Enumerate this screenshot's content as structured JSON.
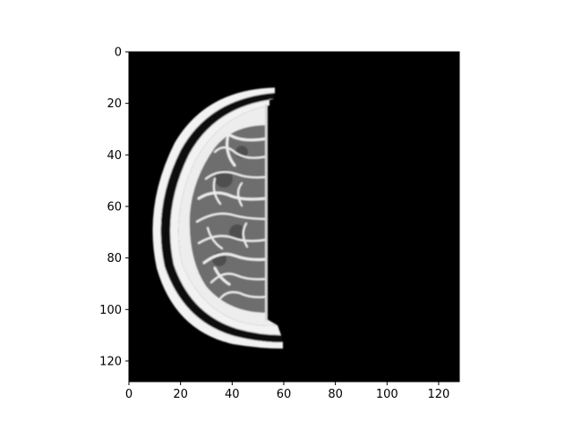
{
  "chart_data": {
    "type": "heatmap",
    "xlim": [
      0,
      128
    ],
    "ylim": [
      128,
      0
    ],
    "x_ticks": [
      "0",
      "20",
      "40",
      "60",
      "80",
      "100",
      "120"
    ],
    "y_ticks": [
      "0",
      "20",
      "40",
      "60",
      "80",
      "100",
      "120"
    ],
    "colormap": "gray",
    "grid": false,
    "legend": "none"
  },
  "colors": {
    "background": "#000000",
    "bright_rim": "#f2f2f2",
    "dark_band": "#0a0a0a",
    "csf": "#ededed",
    "tissue_gray": "#6e6e6e",
    "tissue_dark": "#3c3c3c",
    "cut_edge": "#d8d8d8"
  }
}
